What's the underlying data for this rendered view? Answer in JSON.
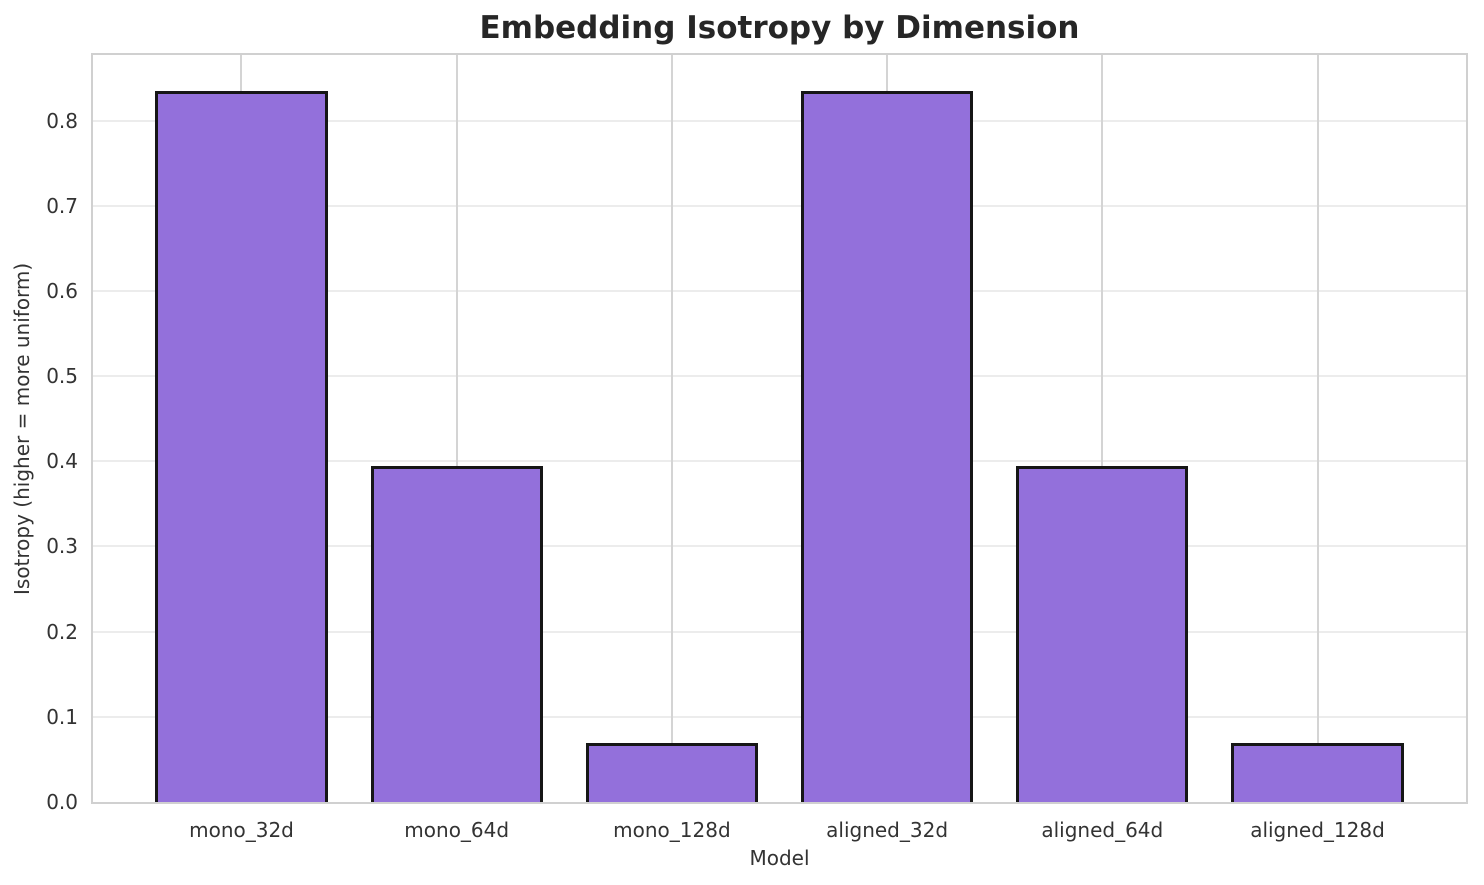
{
  "chart_data": {
    "type": "bar",
    "title": "Embedding Isotropy by Dimension",
    "xlabel": "Model",
    "ylabel": "Isotropy (higher = more uniform)",
    "categories": [
      "mono_32d",
      "mono_64d",
      "mono_128d",
      "aligned_32d",
      "aligned_64d",
      "aligned_128d"
    ],
    "values": [
      0.835,
      0.395,
      0.069,
      0.835,
      0.395,
      0.069
    ],
    "ylim": [
      0,
      0.877
    ],
    "yticks": [
      0.0,
      0.1,
      0.2,
      0.3,
      0.4,
      0.5,
      0.6,
      0.7,
      0.8
    ],
    "ytick_labels": [
      "0.0",
      "0.1",
      "0.2",
      "0.3",
      "0.4",
      "0.5",
      "0.6",
      "0.7",
      "0.8"
    ],
    "xlim": [
      -0.69,
      5.69
    ],
    "bar_width": 0.8,
    "grid": true,
    "legend_position": "none",
    "colors": {
      "bar_fill": "#9370db",
      "bar_edge": "#161616",
      "grid_horizontal": "#ececec",
      "grid_vertical": "#d4d4d4",
      "spine": "#d0d0d0",
      "title_text": "#262626",
      "label_text": "#333333"
    }
  }
}
